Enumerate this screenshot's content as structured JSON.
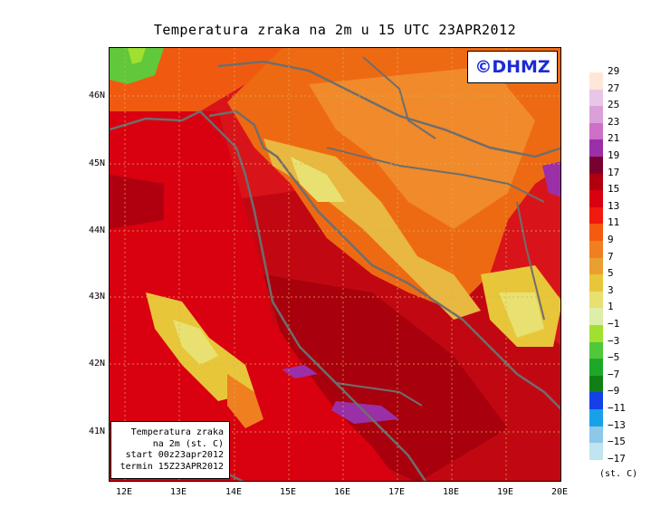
{
  "title": "Temperatura zraka na 2m u 15 UTC 23APR2012",
  "logo": "©DHMZ",
  "infobox": {
    "line1": "Temperatura zraka",
    "line2": "na 2m (st. C)",
    "line3": "start 00z23apr2012",
    "line4": "termin 15Z23APR2012"
  },
  "y_axis_labels": [
    "46N",
    "45N",
    "44N",
    "43N",
    "42N",
    "41N"
  ],
  "x_axis_labels": [
    "12E",
    "13E",
    "14E",
    "15E",
    "16E",
    "17E",
    "18E",
    "19E",
    "20E"
  ],
  "legend": {
    "unit": "(st. C)",
    "levels": [
      "29",
      "27",
      "25",
      "23",
      "21",
      "19",
      "17",
      "15",
      "13",
      "11",
      "9",
      "7",
      "5",
      "3",
      "1",
      "−1",
      "−3",
      "−5",
      "−7",
      "−9",
      "−11",
      "−13",
      "−15",
      "−17"
    ],
    "colors": [
      "#fde8d8",
      "#e9c6e6",
      "#dba0d8",
      "#cc70c8",
      "#9b2fa8",
      "#7a0030",
      "#b00010",
      "#d90010",
      "#f01a0f",
      "#f45a10",
      "#f07f20",
      "#e8a030",
      "#e8c63a",
      "#e8e070",
      "#ddeea8",
      "#a0e030",
      "#50c83a",
      "#1ea828",
      "#108016",
      "#1440e8",
      "#18a0e8",
      "#8cc8e8",
      "#c0e4f0",
      "#e8f8f8"
    ]
  },
  "color_keys": {
    "sea": "#d8141a",
    "coast": "#6e6e6e",
    "land": "#f07f20"
  }
}
